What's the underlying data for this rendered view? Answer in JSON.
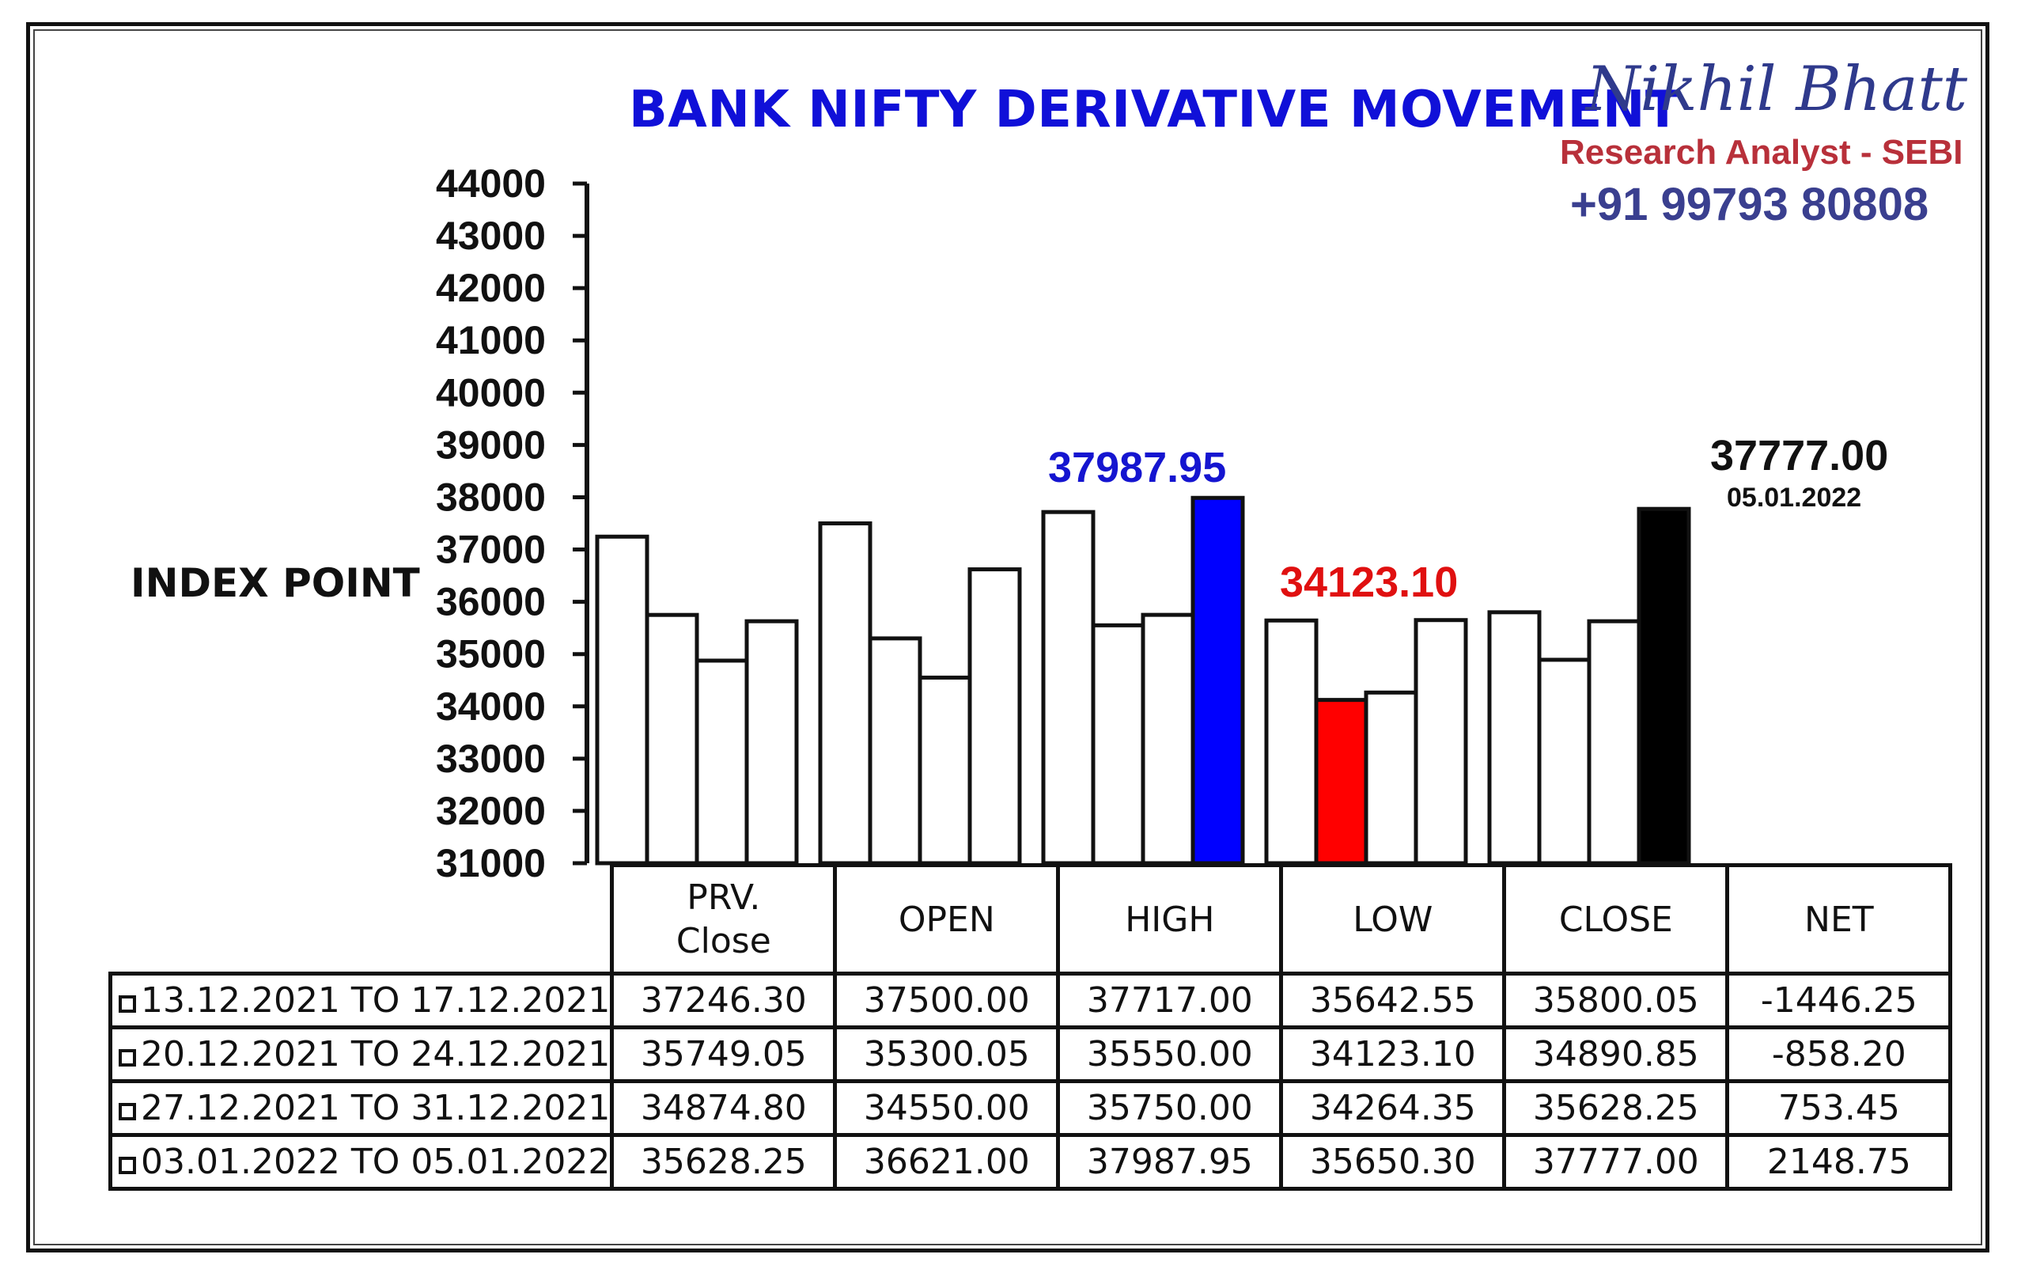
{
  "title": "BANK NIFTY DERIVATIVE MOVEMENT",
  "brand": {
    "name": "Nikhil Bhatt",
    "role": "Research Analyst - SEBI",
    "phone": "+91 99793 80808"
  },
  "highlights": {
    "high": "37987.95",
    "low": "34123.10",
    "last_close": "37777.00",
    "last_date": "05.01.2022"
  },
  "colors": {
    "title": "#1010d8",
    "high_bar": "#0000ff",
    "low_bar": "#ff0000",
    "close_bar": "#000000",
    "default_bar": "#ffffff"
  },
  "chart_data": {
    "type": "bar",
    "title": "BANK NIFTY DERIVATIVE MOVEMENT",
    "ylabel": "INDEX POINT",
    "ylim": [
      31000,
      44000
    ],
    "yticks": [
      "44000",
      "43000",
      "42000",
      "41000",
      "40000",
      "39000",
      "38000",
      "37000",
      "36000",
      "35000",
      "34000",
      "33000",
      "32000",
      "31000"
    ],
    "categories": [
      "PRV. Close",
      "OPEN",
      "HIGH",
      "LOW",
      "CLOSE"
    ],
    "series": [
      {
        "name": "13.12.2021 TO 17.12.2021",
        "values": [
          37246.3,
          37500.0,
          37717.0,
          35642.55,
          35800.05
        ]
      },
      {
        "name": "20.12.2021 TO 24.12.2021",
        "values": [
          35749.05,
          35300.05,
          35550.0,
          34123.1,
          34890.85
        ]
      },
      {
        "name": "27.12.2021 TO 31.12.2021",
        "values": [
          34874.8,
          34550.0,
          35750.0,
          34264.35,
          35628.25
        ]
      },
      {
        "name": "03.01.2022 TO 05.01.2022",
        "values": [
          35628.25,
          36621.0,
          37987.95,
          35650.3,
          37777.0
        ]
      }
    ],
    "highlighted_bars": [
      {
        "category": "HIGH",
        "series": 3,
        "color": "#0000ff"
      },
      {
        "category": "LOW",
        "series": 1,
        "color": "#ff0000"
      },
      {
        "category": "CLOSE",
        "series": 3,
        "color": "#000000"
      }
    ]
  },
  "table": {
    "headers": [
      "PRV.\nClose",
      "OPEN",
      "HIGH",
      "LOW",
      "CLOSE",
      "NET"
    ],
    "rows": [
      {
        "label": "13.12.2021 TO 17.12.2021",
        "cells": [
          "37246.30",
          "37500.00",
          "37717.00",
          "35642.55",
          "35800.05",
          "-1446.25"
        ]
      },
      {
        "label": "20.12.2021 TO 24.12.2021",
        "cells": [
          "35749.05",
          "35300.05",
          "35550.00",
          "34123.10",
          "34890.85",
          "-858.20"
        ]
      },
      {
        "label": "27.12.2021 TO 31.12.2021",
        "cells": [
          "34874.80",
          "34550.00",
          "35750.00",
          "34264.35",
          "35628.25",
          "753.45"
        ]
      },
      {
        "label": "03.01.2022 TO 05.01.2022",
        "cells": [
          "35628.25",
          "36621.00",
          "37987.95",
          "35650.30",
          "37777.00",
          "2148.75"
        ]
      }
    ]
  }
}
